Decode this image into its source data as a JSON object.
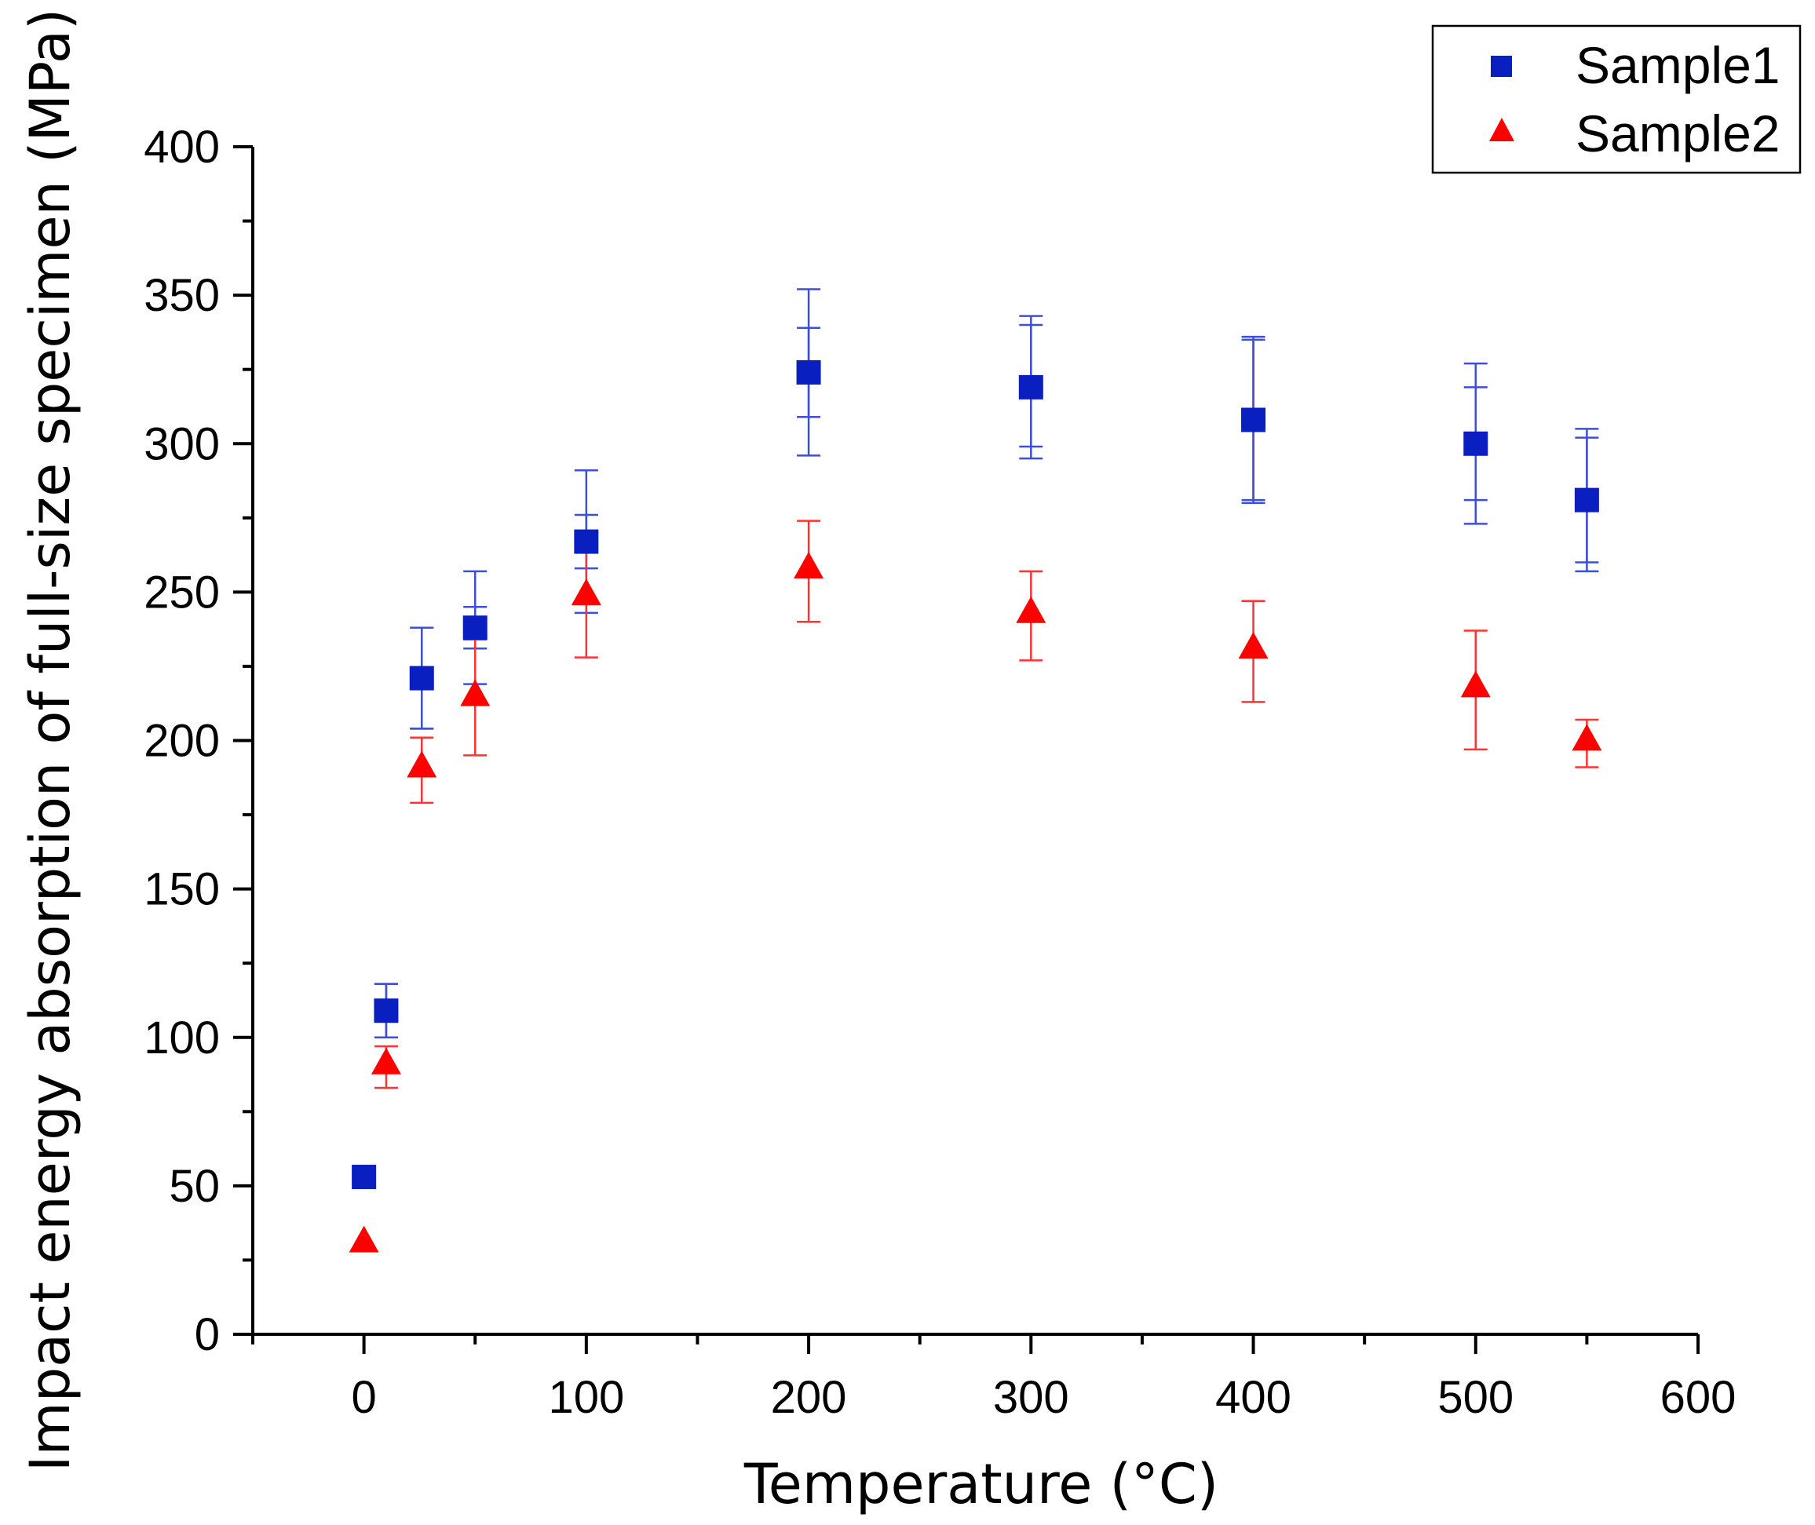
{
  "chart_data": {
    "type": "scatter",
    "title": "",
    "xlabel": "Temperature (°C)",
    "ylabel": "Impact energy absorption of full-size specimen (MPa)",
    "xlim": [
      -50,
      600
    ],
    "ylim": [
      0,
      400
    ],
    "x_ticks": [
      0,
      100,
      200,
      300,
      400,
      500,
      600
    ],
    "y_ticks": [
      0,
      50,
      100,
      150,
      200,
      250,
      300,
      350,
      400
    ],
    "grid": false,
    "legend_position": "top-right",
    "series": [
      {
        "name": "Sample1",
        "marker": "square",
        "color": "#0a1fbf",
        "error_color": "#3d4fd6",
        "points": [
          {
            "x": 0,
            "y": 53,
            "err_outer": [
              53,
              53
            ],
            "err_inner": [
              53,
              53
            ]
          },
          {
            "x": 10,
            "y": 109,
            "err_outer": [
              100,
              118
            ],
            "err_inner": [
              100,
              118
            ]
          },
          {
            "x": 26,
            "y": 221,
            "err_outer": [
              204,
              238
            ],
            "err_inner": [
              204,
              238
            ]
          },
          {
            "x": 50,
            "y": 238,
            "err_outer": [
              219,
              257
            ],
            "err_inner": [
              231,
              245
            ]
          },
          {
            "x": 100,
            "y": 267,
            "err_outer": [
              243,
              291
            ],
            "err_inner": [
              258,
              276
            ]
          },
          {
            "x": 200,
            "y": 324,
            "err_outer": [
              296,
              352
            ],
            "err_inner": [
              309,
              339
            ]
          },
          {
            "x": 300,
            "y": 319,
            "err_outer": [
              295,
              343
            ],
            "err_inner": [
              299,
              340
            ]
          },
          {
            "x": 400,
            "y": 308,
            "err_outer": [
              280,
              336
            ],
            "err_inner": [
              281,
              335
            ]
          },
          {
            "x": 500,
            "y": 300,
            "err_outer": [
              273,
              327
            ],
            "err_inner": [
              281,
              319
            ]
          },
          {
            "x": 550,
            "y": 281,
            "err_outer": [
              257,
              305
            ],
            "err_inner": [
              260,
              302
            ]
          }
        ]
      },
      {
        "name": "Sample2",
        "marker": "triangle",
        "color": "#ff0000",
        "error_color": "#ff3333",
        "points": [
          {
            "x": 0,
            "y": 31,
            "err": [
              31,
              31
            ]
          },
          {
            "x": 10,
            "y": 91,
            "err": [
              83,
              97
            ]
          },
          {
            "x": 26,
            "y": 191,
            "err": [
              179,
              201
            ]
          },
          {
            "x": 50,
            "y": 215,
            "err": [
              195,
              234
            ]
          },
          {
            "x": 100,
            "y": 249,
            "err": [
              228,
              268
            ]
          },
          {
            "x": 200,
            "y": 258,
            "err": [
              240,
              274
            ]
          },
          {
            "x": 300,
            "y": 243,
            "err": [
              227,
              257
            ]
          },
          {
            "x": 400,
            "y": 231,
            "err": [
              213,
              247
            ]
          },
          {
            "x": 500,
            "y": 218,
            "err": [
              197,
              237
            ]
          },
          {
            "x": 550,
            "y": 200,
            "err": [
              191,
              207
            ]
          }
        ]
      }
    ]
  }
}
